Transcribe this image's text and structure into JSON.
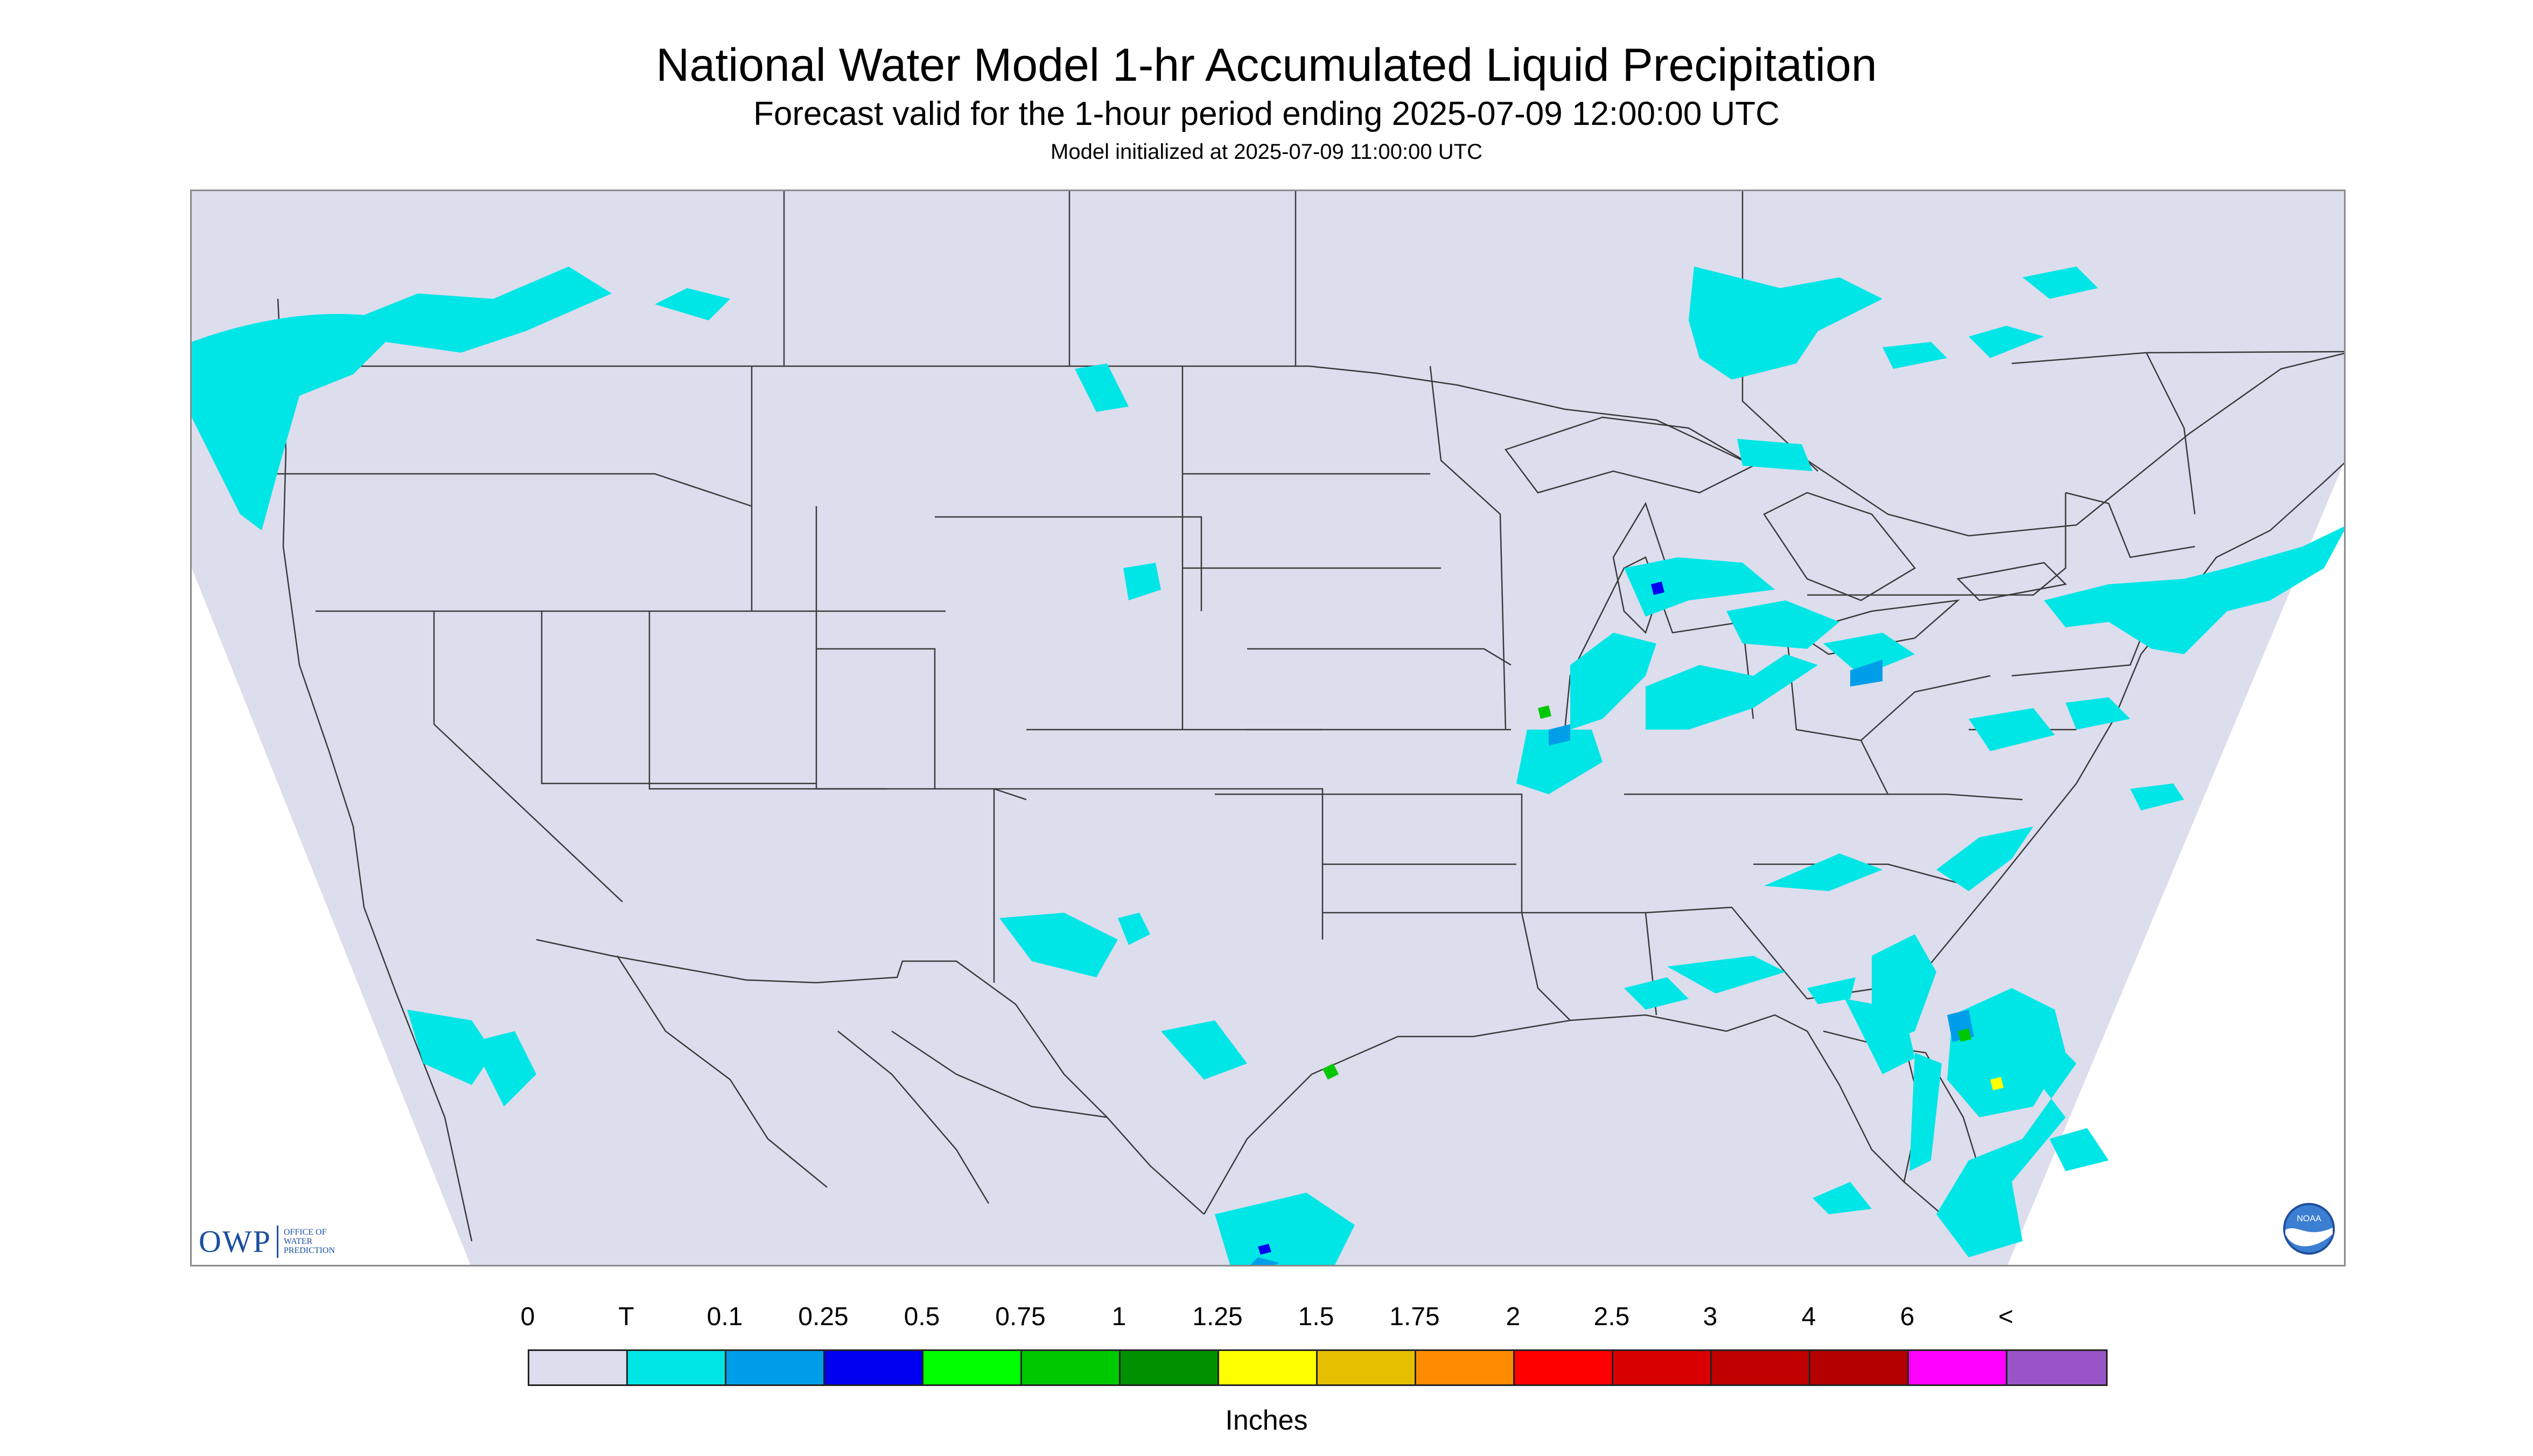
{
  "header": {
    "title": "National Water Model 1-hr Accumulated Liquid Precipitation",
    "subtitle": "Forecast valid for the 1-hour period ending 2025-07-09 12:00:00 UTC",
    "model_init": "Model initialized at 2025-07-09 11:00:00 UTC"
  },
  "map": {
    "region": "CONUS",
    "background_color": "#dcdded",
    "outside_domain_color": "#ffffff",
    "border_color": "#3a3a3a",
    "precip_colors": {
      "trace": "#00e6e6",
      "light": "#009ee8",
      "moderate": "#0000f0",
      "green": "#00c800",
      "yellow": "#ffff00"
    }
  },
  "logos": {
    "owp": {
      "letters": "OWP",
      "line1": "OFFICE OF",
      "line2": "WATER",
      "line3": "PREDICTION"
    },
    "noaa": {
      "text": "NOAA",
      "icon": "noaa-logo-icon"
    }
  },
  "legend": {
    "labels": [
      "0",
      "T",
      "0.1",
      "0.25",
      "0.5",
      "0.75",
      "1",
      "1.25",
      "1.5",
      "1.75",
      "2",
      "2.5",
      "3",
      "4",
      "6",
      "<"
    ],
    "colors": [
      "#dcdded",
      "#00e6e6",
      "#009ee8",
      "#0000f0",
      "#00ff00",
      "#00c800",
      "#009000",
      "#ffff00",
      "#e6c000",
      "#ff8c00",
      "#ff0000",
      "#d80000",
      "#c00000",
      "#b40000",
      "#ff00ff",
      "#9a55c8"
    ],
    "units": "Inches"
  }
}
